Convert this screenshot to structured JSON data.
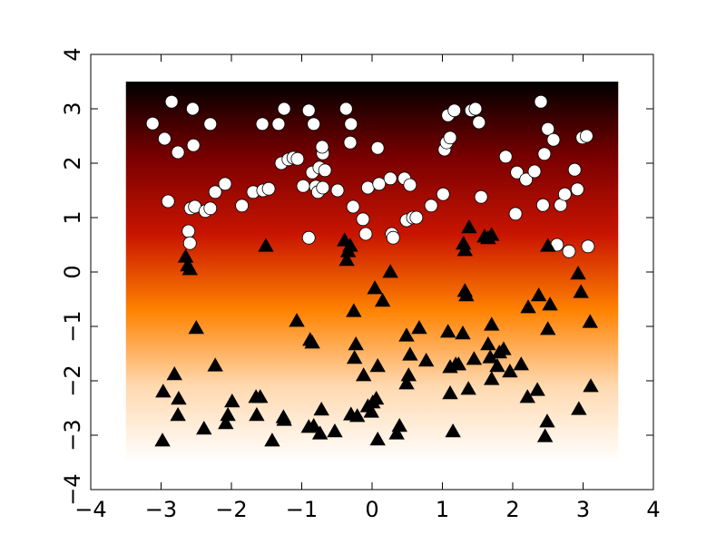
{
  "chart_data": {
    "type": "scatter",
    "xlim": [
      -4,
      4
    ],
    "ylim": [
      -4,
      4
    ],
    "xticks": [
      {
        "value": -4,
        "label": "−4"
      },
      {
        "value": -3,
        "label": "−3"
      },
      {
        "value": -2,
        "label": "−2"
      },
      {
        "value": -1,
        "label": "−1"
      },
      0,
      1,
      2,
      3,
      4
    ],
    "yticks": [
      {
        "value": -4,
        "label": "−4"
      },
      {
        "value": -3,
        "label": "−3"
      },
      {
        "value": -2,
        "label": "−2"
      },
      {
        "value": -1,
        "label": "−1"
      },
      0,
      1,
      2,
      3,
      4
    ],
    "grid": false,
    "background": {
      "extent": [
        -3.5,
        3.5,
        -3.5,
        3.5
      ],
      "colors": [
        "#000000",
        "#7a0000",
        "#c81400",
        "#ff8200",
        "#ffd9b0",
        "#ffffff"
      ]
    },
    "series": [
      {
        "marker": "circle",
        "color": "#ffffff",
        "edgecolor": "#000000",
        "x": [
          -3.12,
          -2.85,
          -2.55,
          -2.95,
          -2.76,
          -2.54,
          -2.3,
          -2.9,
          -2.58,
          -2.52,
          -2.37,
          -2.3,
          -2.23,
          -2.09,
          -2.61,
          -2.59,
          -1.85,
          -1.69,
          -1.55,
          -1.47,
          -1.56,
          -1.33,
          -1.25,
          -1.29,
          -1.19,
          -1.12,
          -1.06,
          -0.9,
          -0.83,
          -0.85,
          -0.75,
          -0.7,
          -0.71,
          -0.67,
          -0.98,
          -0.8,
          -0.77,
          -0.7,
          -0.49,
          -0.37,
          -0.3,
          -0.31,
          -0.27,
          -0.13,
          -0.09,
          -0.06,
          0.08,
          0.1,
          0.28,
          0.3,
          0.26,
          0.46,
          0.49,
          0.54,
          0.58,
          0.63,
          0.84,
          1.01,
          1.03,
          1.06,
          1.11,
          1.08,
          1.17,
          1.41,
          1.47,
          1.52,
          1.55,
          1.9,
          2.04,
          2.06,
          2.19,
          2.31,
          2.4,
          2.45,
          2.5,
          2.58,
          2.68,
          2.74,
          2.88,
          2.92,
          2.99,
          3.05,
          2.63,
          2.8,
          3.07,
          -0.9,
          2.43
        ],
        "y": [
          2.73,
          3.13,
          3.0,
          2.45,
          2.2,
          2.33,
          2.72,
          1.3,
          1.17,
          1.2,
          1.12,
          1.17,
          1.47,
          1.62,
          0.75,
          0.53,
          1.22,
          1.47,
          1.5,
          1.53,
          2.72,
          2.72,
          3.0,
          2.0,
          2.07,
          2.1,
          2.08,
          2.97,
          2.72,
          1.83,
          1.92,
          2.18,
          2.3,
          1.87,
          1.58,
          1.57,
          1.47,
          1.55,
          1.5,
          3.0,
          2.72,
          2.38,
          1.2,
          0.97,
          0.7,
          1.55,
          2.28,
          1.62,
          0.7,
          0.63,
          1.72,
          1.72,
          0.95,
          1.6,
          1.0,
          1.0,
          1.22,
          1.43,
          2.25,
          2.38,
          2.47,
          2.88,
          2.97,
          2.97,
          3.0,
          2.75,
          1.38,
          2.12,
          1.07,
          1.83,
          1.7,
          1.85,
          3.13,
          2.17,
          2.63,
          2.43,
          1.23,
          1.43,
          1.88,
          1.52,
          2.47,
          2.5,
          0.5,
          0.38,
          0.47,
          0.63,
          1.23
        ]
      },
      {
        "marker": "triangle",
        "color": "#000000",
        "edgecolor": "#000000",
        "x": [
          -2.98,
          -2.97,
          -2.81,
          -2.75,
          -2.76,
          -2.65,
          -2.62,
          -2.59,
          -2.5,
          -2.39,
          -2.23,
          -2.08,
          -2.05,
          -1.99,
          -1.65,
          -1.64,
          -1.59,
          -1.51,
          -1.42,
          -1.26,
          -1.25,
          -1.07,
          -0.9,
          -0.85,
          -0.88,
          -0.83,
          -0.74,
          -0.72,
          -0.53,
          -0.39,
          -0.34,
          -0.31,
          -0.36,
          -0.26,
          -0.23,
          -0.25,
          -0.3,
          -0.21,
          -0.12,
          -0.06,
          -0.01,
          0.01,
          0.04,
          0.06,
          0.08,
          0.08,
          0.15,
          0.26,
          0.35,
          0.39,
          0.49,
          0.49,
          0.52,
          0.54,
          0.77,
          0.67,
          1.08,
          1.11,
          1.11,
          1.19,
          1.23,
          1.15,
          1.32,
          1.34,
          1.3,
          1.32,
          1.37,
          1.29,
          1.45,
          1.38,
          1.6,
          1.65,
          1.7,
          1.65,
          1.68,
          1.7,
          1.7,
          1.78,
          1.81,
          1.87,
          1.96,
          2.12,
          2.21,
          2.22,
          2.35,
          2.37,
          2.46,
          2.49,
          2.5,
          2.53,
          2.5,
          2.93,
          2.94,
          2.97,
          3.1,
          3.11
        ],
        "y": [
          -3.1,
          -2.2,
          -1.88,
          -2.33,
          -2.63,
          0.28,
          0.12,
          0.05,
          -1.03,
          -2.88,
          -1.72,
          -2.78,
          -2.63,
          -2.38,
          -2.3,
          -2.63,
          -2.3,
          0.48,
          -3.1,
          -2.67,
          -2.72,
          -0.9,
          -2.85,
          -1.3,
          -1.25,
          -2.83,
          -2.97,
          -2.53,
          -2.93,
          0.58,
          0.38,
          0.48,
          0.22,
          -0.72,
          -1.33,
          -1.58,
          -2.62,
          -2.65,
          -1.9,
          -2.47,
          -2.57,
          -2.4,
          -0.3,
          -2.33,
          -3.08,
          -1.73,
          -0.53,
          0.0,
          -2.97,
          -2.83,
          -1.17,
          -2.05,
          -1.9,
          -1.52,
          -1.63,
          -1.03,
          -1.1,
          -1.75,
          -2.23,
          -1.7,
          -1.7,
          -2.93,
          -0.35,
          -0.43,
          0.52,
          0.4,
          -2.15,
          -1.13,
          -1.6,
          0.82,
          0.65,
          0.62,
          0.68,
          -1.33,
          -1.57,
          -1.97,
          -0.97,
          -1.73,
          -1.48,
          -1.42,
          -1.83,
          -1.7,
          -2.3,
          -0.65,
          -2.17,
          -0.43,
          -3.02,
          -2.75,
          -1.05,
          -0.6,
          0.48,
          -0.03,
          -2.52,
          -0.37,
          -0.92,
          -2.1
        ]
      }
    ]
  }
}
